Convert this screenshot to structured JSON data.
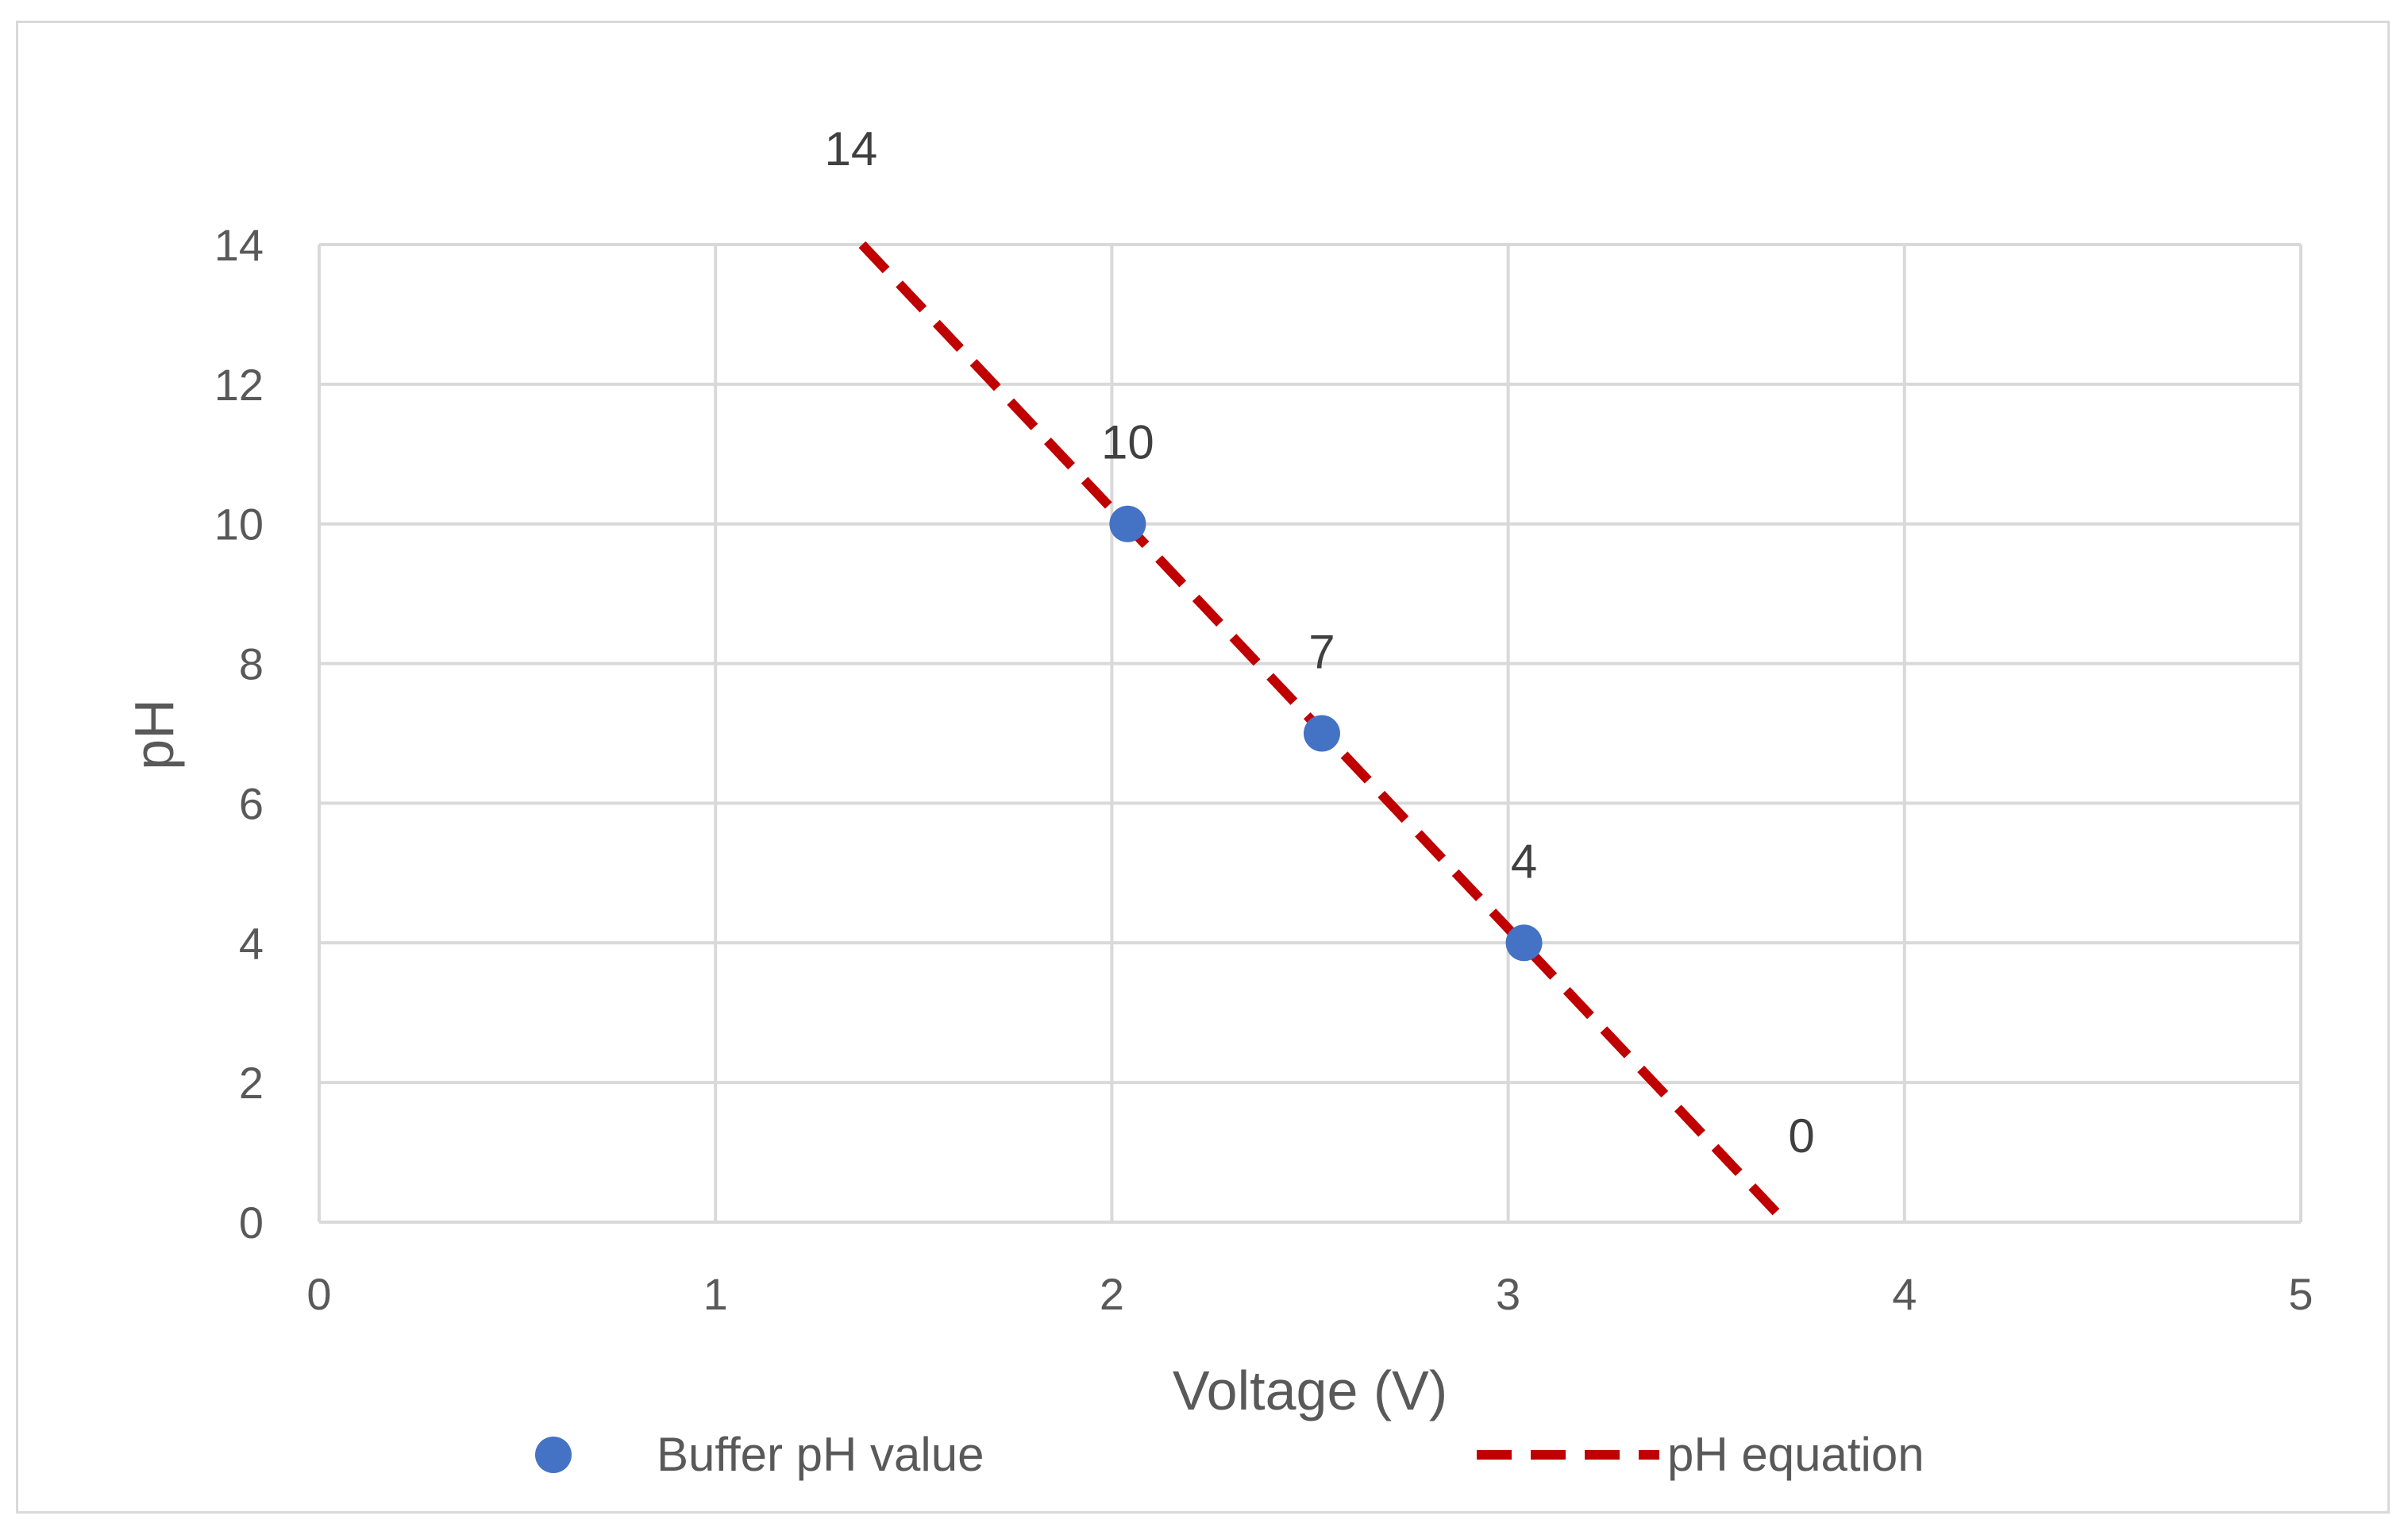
{
  "chart_data": {
    "type": "scatter",
    "title": "",
    "xlabel": "Voltage (V)",
    "ylabel": "pH",
    "xlim": [
      0,
      5
    ],
    "ylim": [
      0,
      14
    ],
    "x_ticks": [
      0,
      1,
      2,
      3,
      4,
      5
    ],
    "y_ticks": [
      0,
      2,
      4,
      6,
      8,
      10,
      12,
      14
    ],
    "grid": true,
    "legend_position": "bottom",
    "series": [
      {
        "name": "Buffer pH value",
        "kind": "scatter",
        "color": "#4472C4",
        "points": [
          {
            "x": 2.04,
            "y": 10,
            "label": "10"
          },
          {
            "x": 2.53,
            "y": 7,
            "label": "7"
          },
          {
            "x": 3.04,
            "y": 4,
            "label": "4"
          }
        ]
      },
      {
        "name": "pH equation",
        "kind": "dashed-line",
        "color": "#C00000",
        "points": [
          {
            "x": 1.37,
            "y": 14,
            "label": "14"
          },
          {
            "x": 3.7,
            "y": 0,
            "label": "0"
          }
        ]
      }
    ]
  }
}
